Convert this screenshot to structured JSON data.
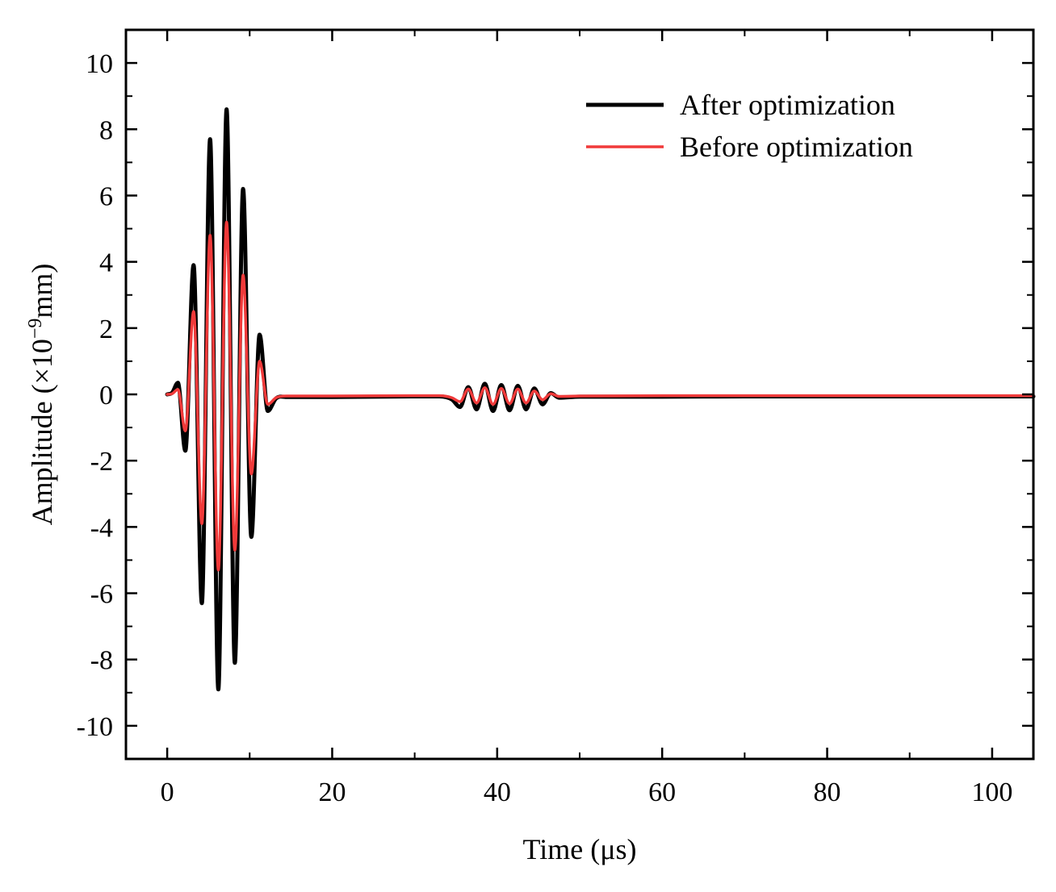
{
  "chart_data": {
    "type": "line",
    "title": "",
    "xlabel": "Time (μs)",
    "ylabel_main": "Amplitude (×10",
    "ylabel_exp": "−9",
    "ylabel_tail": "mm)",
    "xlim": [
      -5,
      105
    ],
    "ylim": [
      -11,
      11
    ],
    "x_ticks": [
      0,
      20,
      40,
      60,
      80,
      100
    ],
    "x_tick_labels": [
      "0",
      "20",
      "40",
      "60",
      "80",
      "100"
    ],
    "y_ticks": [
      10,
      8,
      6,
      4,
      2,
      0,
      -2,
      -4,
      -6,
      -8,
      -10
    ],
    "y_tick_labels": [
      "10",
      "8",
      "6",
      "4",
      "2",
      "0",
      "-2",
      "-4",
      "-6",
      "-8",
      "-10"
    ],
    "legend_position": "top-right",
    "series": [
      {
        "name": "After optimization",
        "color": "#000000",
        "stroke_weight": "thick",
        "points": [
          [
            0,
            0
          ],
          [
            0.6,
            0.05
          ],
          [
            1.3,
            0.35
          ],
          [
            2.2,
            -1.7
          ],
          [
            3.2,
            3.9
          ],
          [
            4.2,
            -6.3
          ],
          [
            5.2,
            7.7
          ],
          [
            6.2,
            -8.9
          ],
          [
            7.2,
            8.6
          ],
          [
            8.2,
            -8.1
          ],
          [
            9.2,
            6.2
          ],
          [
            10.2,
            -4.3
          ],
          [
            11.2,
            1.8
          ],
          [
            12.2,
            -0.5
          ],
          [
            13.2,
            -0.12
          ],
          [
            14.5,
            -0.08
          ],
          [
            20,
            -0.08
          ],
          [
            30,
            -0.06
          ],
          [
            33,
            -0.06
          ],
          [
            34.5,
            -0.15
          ],
          [
            35.5,
            -0.38
          ],
          [
            36.5,
            0.22
          ],
          [
            37.5,
            -0.45
          ],
          [
            38.5,
            0.32
          ],
          [
            39.5,
            -0.5
          ],
          [
            40.5,
            0.28
          ],
          [
            41.5,
            -0.48
          ],
          [
            42.5,
            0.26
          ],
          [
            43.5,
            -0.45
          ],
          [
            44.5,
            0.18
          ],
          [
            45.5,
            -0.3
          ],
          [
            46.5,
            0.04
          ],
          [
            47.5,
            -0.1
          ],
          [
            50,
            -0.07
          ],
          [
            60,
            -0.07
          ],
          [
            70,
            -0.06
          ],
          [
            80,
            -0.06
          ],
          [
            90,
            -0.06
          ],
          [
            100,
            -0.06
          ],
          [
            105,
            -0.06
          ]
        ]
      },
      {
        "name": "Before optimization",
        "color": "#f03a3a",
        "stroke_weight": "medium",
        "points": [
          [
            0,
            0
          ],
          [
            0.6,
            0.02
          ],
          [
            1.3,
            0.15
          ],
          [
            2.2,
            -1.1
          ],
          [
            3.2,
            2.5
          ],
          [
            4.2,
            -3.9
          ],
          [
            5.2,
            4.8
          ],
          [
            6.2,
            -5.3
          ],
          [
            7.2,
            5.2
          ],
          [
            8.2,
            -4.7
          ],
          [
            9.2,
            3.6
          ],
          [
            10.2,
            -2.4
          ],
          [
            11.2,
            1.0
          ],
          [
            12.2,
            -0.3
          ],
          [
            13.2,
            -0.1
          ],
          [
            14.5,
            -0.05
          ],
          [
            20,
            -0.05
          ],
          [
            30,
            -0.04
          ],
          [
            33,
            -0.04
          ],
          [
            34.5,
            -0.1
          ],
          [
            35.5,
            -0.22
          ],
          [
            36.5,
            0.16
          ],
          [
            37.5,
            -0.26
          ],
          [
            38.5,
            0.2
          ],
          [
            39.5,
            -0.3
          ],
          [
            40.5,
            0.18
          ],
          [
            41.5,
            -0.28
          ],
          [
            42.5,
            0.16
          ],
          [
            43.5,
            -0.26
          ],
          [
            44.5,
            0.1
          ],
          [
            45.5,
            -0.16
          ],
          [
            46.5,
            0.02
          ],
          [
            47.5,
            -0.06
          ],
          [
            50,
            -0.05
          ],
          [
            60,
            -0.04
          ],
          [
            70,
            -0.04
          ],
          [
            80,
            -0.04
          ],
          [
            90,
            -0.04
          ],
          [
            100,
            -0.04
          ],
          [
            105,
            -0.04
          ]
        ]
      }
    ]
  }
}
